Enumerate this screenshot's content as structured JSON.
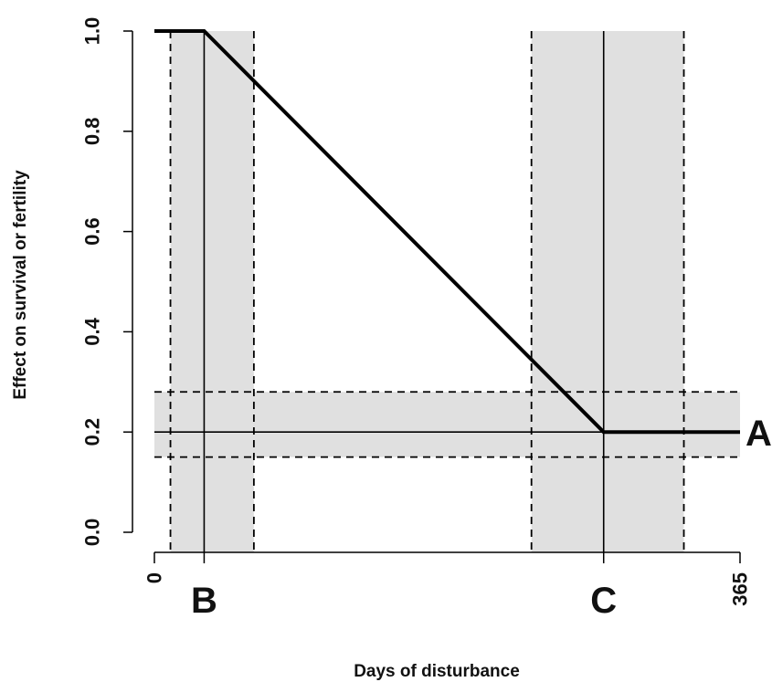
{
  "chart_data": {
    "type": "line",
    "xlabel": "Days of disturbance",
    "ylabel": "Effect on survival or fertility",
    "xlim": [
      0,
      365
    ],
    "ylim": [
      0.0,
      1.0
    ],
    "y_ticks": [
      "0.0",
      "0.2",
      "0.4",
      "0.6",
      "0.8",
      "1.0"
    ],
    "x_ticks": [
      {
        "value": 0,
        "label": "0"
      },
      {
        "value": 365,
        "label": "365"
      }
    ],
    "series": [
      {
        "x": [
          0,
          31,
          280,
          365
        ],
        "y": [
          1.0,
          1.0,
          0.2,
          0.2
        ]
      }
    ],
    "parameters": [
      {
        "label": "B",
        "axis": "x",
        "value": 31,
        "band": [
          10,
          62
        ]
      },
      {
        "label": "C",
        "axis": "x",
        "value": 280,
        "band": [
          235,
          330
        ]
      },
      {
        "label": "A",
        "axis": "y",
        "value": 0.2,
        "band": [
          0.15,
          0.28
        ]
      }
    ],
    "band_color": "#e0e0e0",
    "line_color": "#000000",
    "grid": false
  }
}
